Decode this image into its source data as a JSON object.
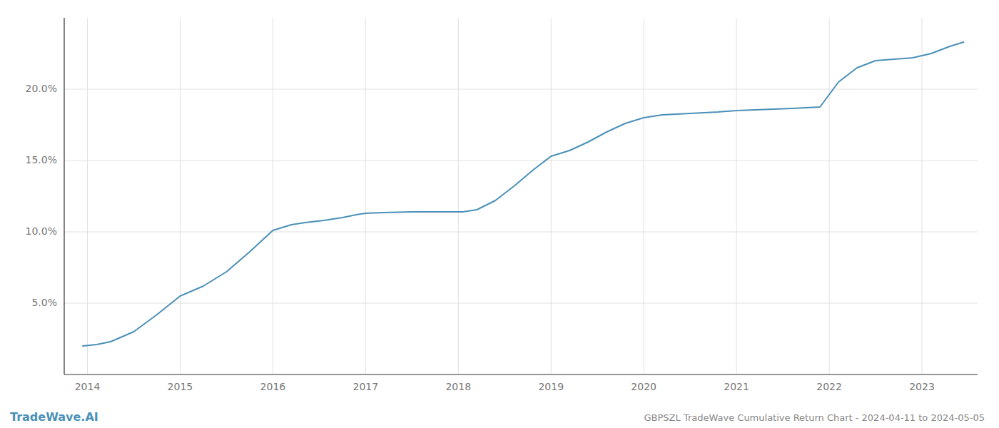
{
  "chart_data": {
    "type": "line",
    "title": "GBPSZL TradeWave Cumulative Return Chart - 2024-04-11 to 2024-05-05",
    "annotations": [
      "TradeWave.AI"
    ],
    "color": "#4a90b8",
    "grid": true,
    "x": [
      2013.95,
      2014.1,
      2014.25,
      2014.5,
      2014.75,
      2015.0,
      2015.25,
      2015.5,
      2015.75,
      2016.0,
      2016.1,
      2016.2,
      2016.35,
      2016.55,
      2016.75,
      2016.9,
      2017.0,
      2017.2,
      2017.5,
      2017.75,
      2018.0,
      2018.05,
      2018.2,
      2018.4,
      2018.6,
      2018.8,
      2019.0,
      2019.2,
      2019.4,
      2019.6,
      2019.8,
      2020.0,
      2020.2,
      2020.35,
      2020.5,
      2020.65,
      2020.8,
      2021.0,
      2021.2,
      2021.4,
      2021.6,
      2021.75,
      2021.9,
      2022.1,
      2022.3,
      2022.5,
      2022.7,
      2022.9,
      2023.1,
      2023.3,
      2023.45
    ],
    "values": [
      2.0,
      2.1,
      2.3,
      3.0,
      4.2,
      5.5,
      6.2,
      7.2,
      8.6,
      10.1,
      10.3,
      10.5,
      10.65,
      10.8,
      11.0,
      11.2,
      11.3,
      11.35,
      11.4,
      11.4,
      11.4,
      11.4,
      11.55,
      12.2,
      13.2,
      14.3,
      15.3,
      15.7,
      16.3,
      17.0,
      17.6,
      18.0,
      18.2,
      18.25,
      18.3,
      18.35,
      18.4,
      18.5,
      18.55,
      18.6,
      18.65,
      18.7,
      18.75,
      20.5,
      21.5,
      22.0,
      22.1,
      22.2,
      22.5,
      23.0,
      23.3
    ],
    "xlim": [
      2013.75,
      2023.6
    ],
    "xticks": [
      2014,
      2015,
      2016,
      2017,
      2018,
      2019,
      2020,
      2021,
      2022,
      2023
    ],
    "ylim": [
      0,
      25
    ],
    "yticks": [
      {
        "value": 5.0,
        "label": "5.0%"
      },
      {
        "value": 10.0,
        "label": "10.0%"
      },
      {
        "value": 15.0,
        "label": "15.0%"
      },
      {
        "value": 20.0,
        "label": "20.0%"
      }
    ]
  }
}
